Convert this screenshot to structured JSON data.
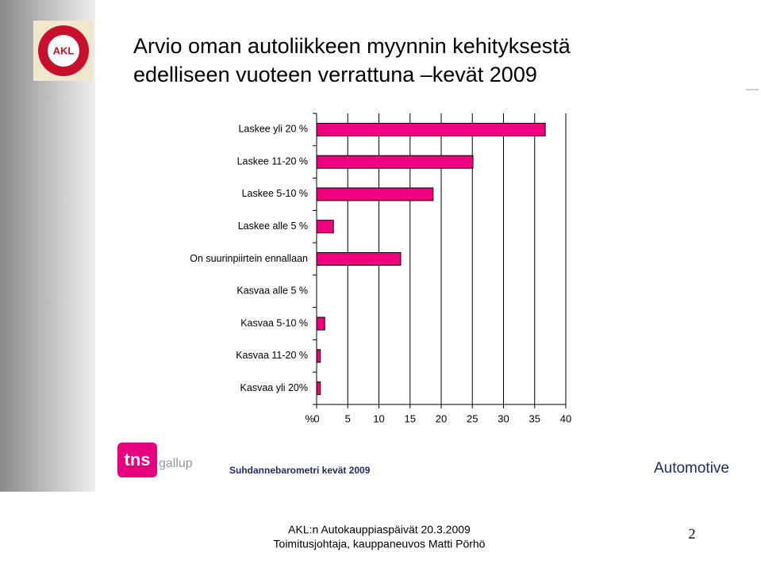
{
  "chart_data": {
    "type": "barh",
    "title": [
      "Arvio oman autoliikkeen myynnin kehityksestä",
      "edelliseen vuoteen verrattuna –kevät 2009"
    ],
    "categories": [
      "Laskee yli 20 %",
      "Laskee 11-20 %",
      "Laskee 5-10 %",
      "Laskee alle 5 %",
      "On suurinpiirtein ennallaan",
      "Kasvaa alle 5 %",
      "Kasvaa 5-10 %",
      "Kasvaa 11-20 %",
      "Kasvaa yli 20%"
    ],
    "values": [
      36.7,
      25.1,
      18.7,
      2.7,
      13.5,
      0,
      1.3,
      0.6,
      0.6
    ],
    "color": "#f0007f",
    "xlabel": "%",
    "xlim": [
      0,
      40
    ],
    "xticks": [
      0,
      5,
      10,
      15,
      20,
      25,
      30,
      35,
      40
    ],
    "grid": true
  },
  "slide": {
    "akl_logo": "AKL",
    "tns_logo": "tns",
    "gallup_logo": "gallup",
    "survey": "Suhdannebarometri kevät 2009",
    "brand": "Automotive",
    "event": "AKL:n Autokauppiaspäivät 20.3.2009",
    "speaker": "Toimitusjohtaja, kauppaneuvos Matti Pörhö",
    "page": "2"
  }
}
